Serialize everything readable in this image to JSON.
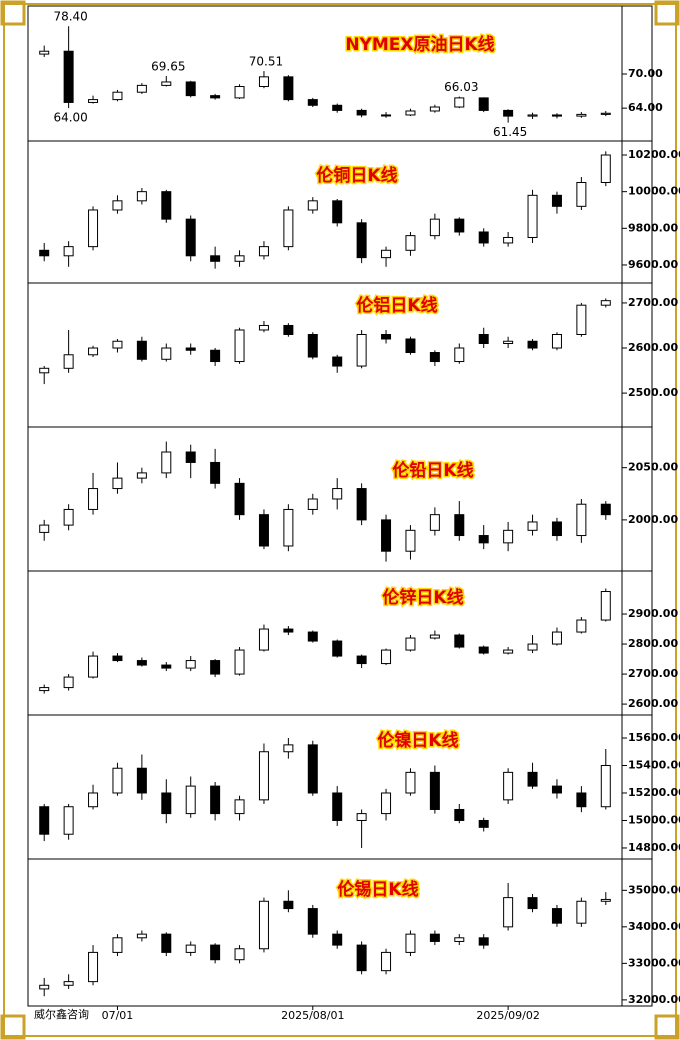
{
  "watermark": "威尔鑫咨询",
  "chart_data": [
    {
      "type": "candlestick",
      "title": "NYMEX原油日K线",
      "open": [
        73.5,
        74,
        65,
        65.5,
        66.8,
        68,
        68.6,
        66.2,
        65.8,
        67.8,
        69.5,
        65.5,
        64.5,
        63.6,
        62.8,
        62.8,
        63.5,
        64.2,
        65.8,
        63.6,
        62.6,
        62.8,
        62.6,
        62.9
      ],
      "high": [
        75,
        78.4,
        66.2,
        67.2,
        68.4,
        69.65,
        68.8,
        66.5,
        68.2,
        70.51,
        69.8,
        65.8,
        64.8,
        63.9,
        63.3,
        63.9,
        64.6,
        66.03,
        65.9,
        63.8,
        63.2,
        63.1,
        63.3,
        63.5
      ],
      "low": [
        73,
        64,
        64.8,
        65.2,
        66.5,
        67.8,
        65.9,
        65.5,
        65.6,
        67.5,
        65.2,
        64.2,
        63.2,
        62.4,
        62.3,
        62.6,
        63.2,
        64,
        63.3,
        61.45,
        62.1,
        62.2,
        62.3,
        62.6
      ],
      "close": [
        74,
        65,
        65.5,
        66.8,
        68,
        68.6,
        66.2,
        65.8,
        67.8,
        69.5,
        65.5,
        64.5,
        63.6,
        62.8,
        62.8,
        63.5,
        64.2,
        65.8,
        63.6,
        62.6,
        62.8,
        62.6,
        62.9,
        63.1
      ],
      "ylim": [
        58.4,
        81.6
      ],
      "yticks": [
        {
          "value": 64,
          "label": "64.00"
        },
        {
          "value": 70,
          "label": "70.00"
        }
      ],
      "annotations": [
        {
          "value": 78.4,
          "label": "78.40"
        },
        {
          "value": 64,
          "label": "64.00"
        },
        {
          "value": 69.65,
          "label": "69.65"
        },
        {
          "value": 70.51,
          "label": "70.51"
        },
        {
          "value": 66.03,
          "label": "66.03"
        },
        {
          "value": 61.45,
          "label": "61.45"
        }
      ]
    },
    {
      "type": "candlestick",
      "title": "伦铜日K线",
      "open": [
        9680,
        9650,
        9700,
        9900,
        9950,
        10000,
        9850,
        9650,
        9620,
        9650,
        9700,
        9900,
        9950,
        9830,
        9640,
        9680,
        9760,
        9850,
        9780,
        9720,
        9750,
        9980,
        9920,
        10050
      ],
      "high": [
        9720,
        9730,
        9920,
        9980,
        10020,
        10010,
        9870,
        9700,
        9680,
        9730,
        9920,
        9970,
        9960,
        9850,
        9700,
        9780,
        9880,
        9860,
        9800,
        9780,
        10010,
        10000,
        10080,
        10220
      ],
      "low": [
        9620,
        9590,
        9680,
        9880,
        9930,
        9830,
        9620,
        9580,
        9590,
        9630,
        9680,
        9880,
        9810,
        9610,
        9590,
        9650,
        9740,
        9760,
        9700,
        9700,
        9720,
        9880,
        9900,
        10030
      ],
      "close": [
        9650,
        9700,
        9900,
        9950,
        10000,
        9850,
        9650,
        9620,
        9650,
        9700,
        9900,
        9950,
        9830,
        9640,
        9680,
        9760,
        9850,
        9780,
        9720,
        9750,
        9980,
        9920,
        10050,
        10200
      ],
      "ylim": [
        9507,
        10271
      ],
      "yticks": [
        {
          "value": 9600,
          "label": "9600.00"
        },
        {
          "value": 9800,
          "label": "9800.00"
        },
        {
          "value": 10000,
          "label": "10000.00"
        },
        {
          "value": 10200,
          "label": "10200.00"
        }
      ]
    },
    {
      "type": "candlestick",
      "title": "伦铝日K线",
      "open": [
        2545,
        2555,
        2585,
        2600,
        2615,
        2575,
        2600,
        2595,
        2570,
        2640,
        2650,
        2630,
        2580,
        2560,
        2630,
        2620,
        2590,
        2570,
        2630,
        2610,
        2615,
        2600,
        2630,
        2695
      ],
      "high": [
        2560,
        2640,
        2605,
        2620,
        2625,
        2610,
        2610,
        2600,
        2645,
        2660,
        2655,
        2635,
        2585,
        2640,
        2640,
        2625,
        2595,
        2610,
        2645,
        2625,
        2620,
        2635,
        2700,
        2710
      ],
      "low": [
        2520,
        2545,
        2580,
        2590,
        2570,
        2570,
        2585,
        2560,
        2565,
        2635,
        2625,
        2575,
        2545,
        2555,
        2610,
        2585,
        2560,
        2565,
        2600,
        2600,
        2595,
        2595,
        2625,
        2690
      ],
      "close": [
        2555,
        2585,
        2600,
        2615,
        2575,
        2600,
        2595,
        2570,
        2640,
        2650,
        2630,
        2580,
        2560,
        2630,
        2620,
        2590,
        2570,
        2600,
        2610,
        2615,
        2600,
        2630,
        2695,
        2705
      ],
      "ylim": [
        2427,
        2742
      ],
      "yticks": [
        {
          "value": 2500,
          "label": "2500.00"
        },
        {
          "value": 2600,
          "label": "2600.00"
        },
        {
          "value": 2700,
          "label": "2700.00"
        }
      ]
    },
    {
      "type": "candlestick",
      "title": "伦铅日K线",
      "open": [
        1988,
        1995,
        2010,
        2030,
        2040,
        2045,
        2065,
        2055,
        2035,
        2005,
        1975,
        2010,
        2020,
        2030,
        2000,
        1970,
        1990,
        2005,
        1985,
        1978,
        1990,
        1998,
        1985,
        2015
      ],
      "high": [
        2000,
        2015,
        2045,
        2055,
        2050,
        2075,
        2072,
        2068,
        2040,
        2010,
        2015,
        2025,
        2040,
        2035,
        2005,
        1995,
        2012,
        2018,
        1995,
        1998,
        2005,
        2002,
        2020,
        2018
      ],
      "low": [
        1980,
        1990,
        2005,
        2025,
        2035,
        2040,
        2040,
        2030,
        2000,
        1972,
        1970,
        2005,
        2010,
        1995,
        1960,
        1962,
        1985,
        1980,
        1972,
        1970,
        1985,
        1980,
        1978,
        2000
      ],
      "close": [
        1995,
        2010,
        2030,
        2040,
        2045,
        2065,
        2055,
        2035,
        2005,
        1975,
        2010,
        2020,
        2030,
        2000,
        1970,
        1990,
        2005,
        1985,
        1978,
        1990,
        1998,
        1985,
        2015,
        2005
      ],
      "ylim": [
        1952,
        2088
      ],
      "yticks": [
        {
          "value": 2000,
          "label": "2000.00"
        },
        {
          "value": 2050,
          "label": "2050.00"
        }
      ]
    },
    {
      "type": "candlestick",
      "title": "伦锌日K线",
      "open": [
        2645,
        2655,
        2690,
        2760,
        2745,
        2730,
        2720,
        2745,
        2700,
        2780,
        2850,
        2840,
        2810,
        2760,
        2735,
        2780,
        2820,
        2830,
        2790,
        2770,
        2780,
        2800,
        2840,
        2880
      ],
      "high": [
        2665,
        2700,
        2775,
        2770,
        2755,
        2740,
        2760,
        2750,
        2790,
        2865,
        2860,
        2845,
        2815,
        2765,
        2785,
        2830,
        2845,
        2835,
        2795,
        2790,
        2830,
        2855,
        2890,
        2985
      ],
      "low": [
        2635,
        2645,
        2685,
        2740,
        2725,
        2710,
        2710,
        2690,
        2695,
        2775,
        2830,
        2805,
        2755,
        2720,
        2730,
        2775,
        2815,
        2785,
        2765,
        2765,
        2770,
        2795,
        2835,
        2875
      ],
      "close": [
        2655,
        2690,
        2760,
        2745,
        2730,
        2720,
        2745,
        2700,
        2780,
        2850,
        2840,
        2810,
        2760,
        2735,
        2780,
        2820,
        2830,
        2790,
        2770,
        2780,
        2800,
        2840,
        2880,
        2975
      ],
      "ylim": [
        2567,
        3040
      ],
      "yticks": [
        {
          "value": 2600,
          "label": "2600.00"
        },
        {
          "value": 2700,
          "label": "2700.00"
        },
        {
          "value": 2800,
          "label": "2800.00"
        },
        {
          "value": 2900,
          "label": "2900.00"
        }
      ]
    },
    {
      "type": "candlestick",
      "title": "伦镍日K线",
      "open": [
        15100,
        14900,
        15100,
        15200,
        15380,
        15200,
        15050,
        15250,
        15050,
        15150,
        15500,
        15550,
        15200,
        15000,
        15050,
        15200,
        15350,
        15080,
        15000,
        15150,
        15350,
        15250,
        15200,
        15100
      ],
      "high": [
        15120,
        15120,
        15260,
        15420,
        15480,
        15300,
        15320,
        15280,
        15180,
        15560,
        15600,
        15580,
        15250,
        15080,
        15230,
        15380,
        15400,
        15120,
        15020,
        15380,
        15420,
        15300,
        15250,
        15520
      ],
      "low": [
        14850,
        14860,
        15080,
        15180,
        15150,
        14980,
        15020,
        15000,
        15000,
        15120,
        15450,
        15180,
        14960,
        14800,
        15000,
        15180,
        15050,
        14980,
        14920,
        15120,
        15230,
        15160,
        15060,
        15080
      ],
      "close": [
        14900,
        15100,
        15200,
        15380,
        15200,
        15050,
        15250,
        15050,
        15150,
        15500,
        15550,
        15200,
        15000,
        15050,
        15200,
        15350,
        15080,
        15000,
        14950,
        15350,
        15250,
        15200,
        15100,
        15400
      ],
      "ylim": [
        14727,
        15760
      ],
      "yticks": [
        {
          "value": 14800,
          "label": "14800.00"
        },
        {
          "value": 15000,
          "label": "15000.00"
        },
        {
          "value": 15200,
          "label": "15200.00"
        },
        {
          "value": 15400,
          "label": "15400.00"
        },
        {
          "value": 15600,
          "label": "15600.00"
        }
      ]
    },
    {
      "type": "candlestick",
      "title": "伦锡日K线",
      "open": [
        32300,
        32400,
        32500,
        33300,
        33700,
        33800,
        33300,
        33500,
        33100,
        33400,
        34700,
        34500,
        33800,
        33500,
        32800,
        33300,
        33800,
        33600,
        33700,
        34000,
        34800,
        34500,
        34100,
        34700
      ],
      "high": [
        32600,
        32700,
        33500,
        33800,
        33900,
        33850,
        33600,
        33550,
        33500,
        34800,
        35000,
        34600,
        33900,
        33600,
        33400,
        33900,
        33900,
        33800,
        33800,
        35200,
        34900,
        34600,
        34800,
        34950
      ],
      "low": [
        32100,
        32300,
        32400,
        33200,
        33600,
        33200,
        33200,
        33000,
        33000,
        33300,
        34400,
        33700,
        33400,
        32700,
        32700,
        33200,
        33500,
        33500,
        33400,
        33900,
        34400,
        34000,
        34000,
        34600
      ],
      "close": [
        32400,
        32500,
        33300,
        33700,
        33800,
        33300,
        33500,
        33100,
        33400,
        34700,
        34500,
        33800,
        33500,
        32800,
        33300,
        33800,
        33600,
        33700,
        33500,
        34800,
        34500,
        34100,
        34700,
        34750
      ],
      "ylim": [
        31860,
        35830
      ],
      "yticks": [
        {
          "value": 32000,
          "label": "32000.00"
        },
        {
          "value": 33000,
          "label": "33000.00"
        },
        {
          "value": 34000,
          "label": "34000.00"
        },
        {
          "value": 35000,
          "label": "35000.00"
        }
      ],
      "categories": [
        null,
        null,
        null,
        "07/01",
        null,
        null,
        null,
        null,
        null,
        null,
        null,
        "2025/08/01",
        null,
        null,
        null,
        null,
        null,
        null,
        null,
        "2025/09/02",
        null,
        null,
        null,
        null
      ]
    }
  ]
}
